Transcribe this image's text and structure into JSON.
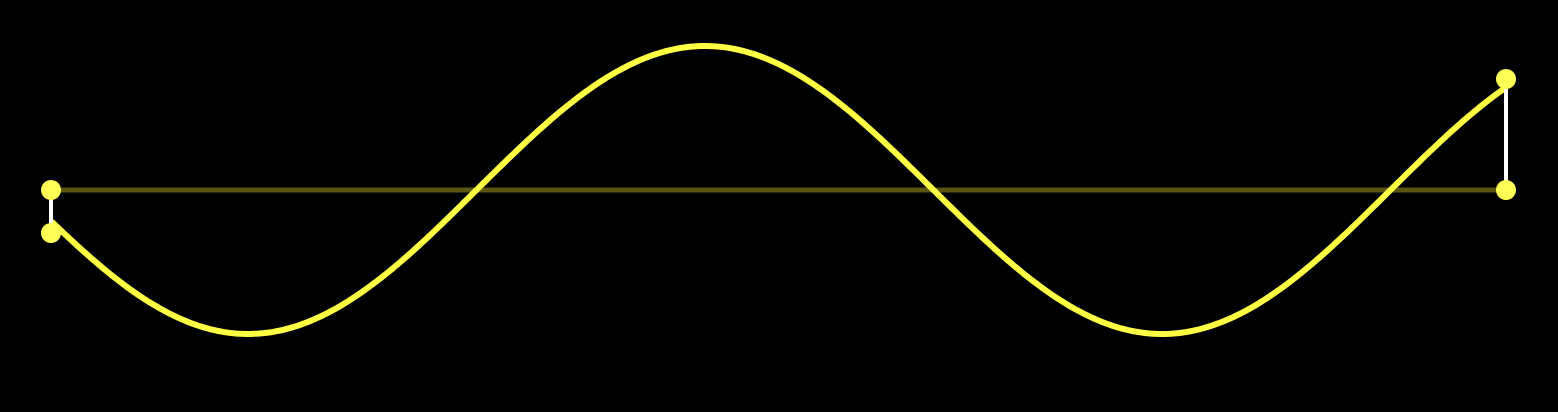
{
  "canvas": {
    "background_color": "#000000"
  },
  "colors": {
    "curve": "#ffff44",
    "baseline": "#5a5510",
    "tangent_line": "#ffffff",
    "control_point": "#ffff55"
  },
  "icons": {
    "control_point": "circle-handle"
  }
}
